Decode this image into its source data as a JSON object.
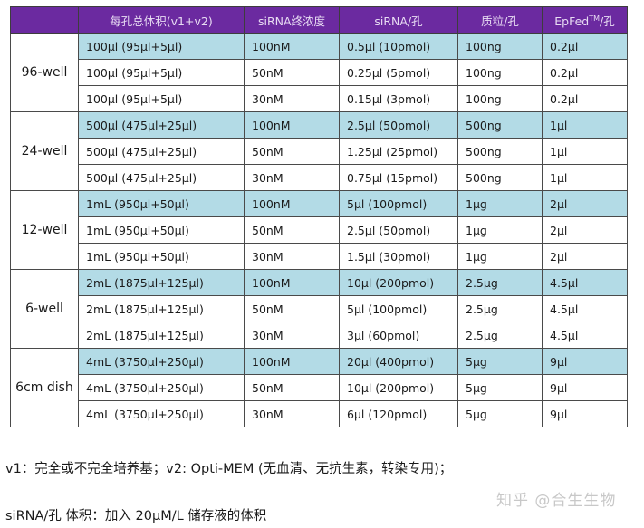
{
  "table": {
    "headers": [
      "",
      "每孔总体积(v1+v2)",
      "siRNA终浓度",
      "siRNA/孔",
      "质粒/孔",
      "EpFed",
      "TM",
      "/孔"
    ],
    "header_color": "#6b2aa0",
    "highlight_color": "#b3dbe6",
    "groups": [
      {
        "label": "96-well",
        "rows": [
          [
            "100µl (95µl+5µl)",
            "100nM",
            "0.5µl (10pmol)",
            "100ng",
            "0.2µl"
          ],
          [
            "100µl (95µl+5µl)",
            "50nM",
            "0.25µl (5pmol)",
            "100ng",
            "0.2µl"
          ],
          [
            "100µl (95µl+5µl)",
            "30nM",
            "0.15µl (3pmol)",
            "100ng",
            "0.2µl"
          ]
        ]
      },
      {
        "label": "24-well",
        "rows": [
          [
            "500µl (475µl+25µl)",
            "100nM",
            "2.5µl (50pmol)",
            "500ng",
            "1µl"
          ],
          [
            "500µl (475µl+25µl)",
            "50nM",
            "1.25µl (25pmol)",
            "500ng",
            "1µl"
          ],
          [
            "500µl (475µl+25µl)",
            "30nM",
            "0.75µl (15pmol)",
            "500ng",
            "1µl"
          ]
        ]
      },
      {
        "label": "12-well",
        "rows": [
          [
            "1mL (950µl+50µl)",
            "100nM",
            "5µl (100pmol)",
            "1µg",
            "2µl"
          ],
          [
            "1mL (950µl+50µl)",
            "50nM",
            "2.5µl (50pmol)",
            "1µg",
            "2µl"
          ],
          [
            "1mL (950µl+50µl)",
            "30nM",
            "1.5µl (30pmol)",
            "1µg",
            "2µl"
          ]
        ]
      },
      {
        "label": "6-well",
        "rows": [
          [
            "2mL (1875µl+125µl)",
            "100nM",
            "10µl (200pmol)",
            "2.5µg",
            "4.5µl"
          ],
          [
            "2mL (1875µl+125µl)",
            "50nM",
            "5µl (100pmol)",
            "2.5µg",
            "4.5µl"
          ],
          [
            "2mL (1875µl+125µl)",
            "30nM",
            "3µl (60pmol)",
            "2.5µg",
            "4.5µl"
          ]
        ]
      },
      {
        "label": "6cm dish",
        "rows": [
          [
            "4mL (3750µl+250µl)",
            "100nM",
            "20µl (400pmol)",
            "5µg",
            "9µl"
          ],
          [
            "4mL (3750µl+250µl)",
            "50nM",
            "10µl (200pmol)",
            "5µg",
            "9µl"
          ],
          [
            "4mL (3750µl+250µl)",
            "30nM",
            "6µl (120pmol)",
            "5µg",
            "9µl"
          ]
        ]
      }
    ]
  },
  "notes": {
    "line1": "v1：完全或不完全培养基；v2: Opti-MEM (无血清、无抗生素，转染专用)；",
    "line2": "siRNA/孔 体积：加入 20µM/L 储存液的体积"
  },
  "watermark": "知乎 @合生生物"
}
